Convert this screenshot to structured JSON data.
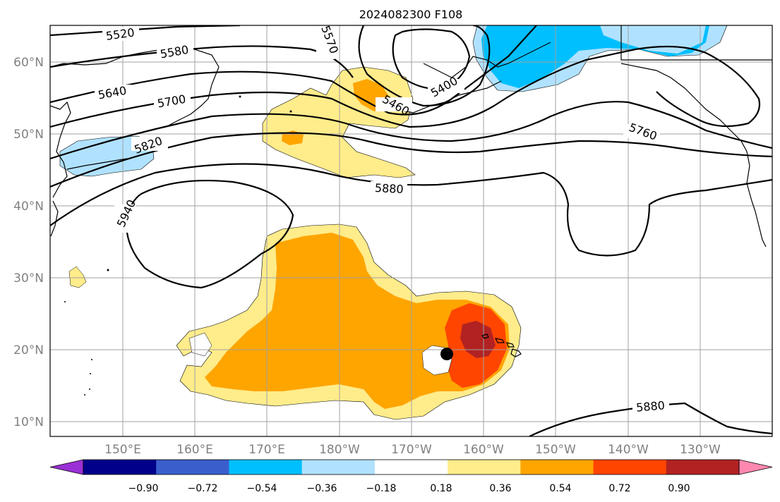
{
  "title": "2024082300 F108",
  "axes": {
    "lat_ticks": [
      "60°N",
      "50°N",
      "40°N",
      "30°N",
      "20°N",
      "10°N"
    ],
    "lon_ticks": [
      "150°E",
      "160°E",
      "170°E",
      "180°W",
      "170°W",
      "160°W",
      "150°W",
      "140°W",
      "130°W"
    ],
    "lat_range_deg": [
      8,
      65
    ],
    "lon_range_deg_east": [
      140,
      240
    ]
  },
  "contour_labels": [
    "5520",
    "5580",
    "5640",
    "5700",
    "5820",
    "5940",
    "5880",
    "5760",
    "5460",
    "5400",
    "5570",
    "5880"
  ],
  "colorbar": {
    "ticks": [
      "−0.90",
      "−0.72",
      "−0.54",
      "−0.36",
      "−0.18",
      "0.18",
      "0.36",
      "0.54",
      "0.72",
      "0.90"
    ],
    "colors": [
      "#9b30d6",
      "#00008b",
      "#3a5fcd",
      "#00bfff",
      "#b0e2ff",
      "#ffffff",
      "#ffec8b",
      "#ffa500",
      "#ff4500",
      "#b22222",
      "#ff88b0"
    ]
  },
  "map": {
    "fill_colors": {
      "yellow": "#ffec8b",
      "orange": "#ffa500",
      "red_orange": "#ff4500",
      "dark_red": "#b22222",
      "light_blue": "#b0e2ff",
      "blue": "#00bfff"
    },
    "marker": "black dot near 19.5°N 165°W"
  }
}
